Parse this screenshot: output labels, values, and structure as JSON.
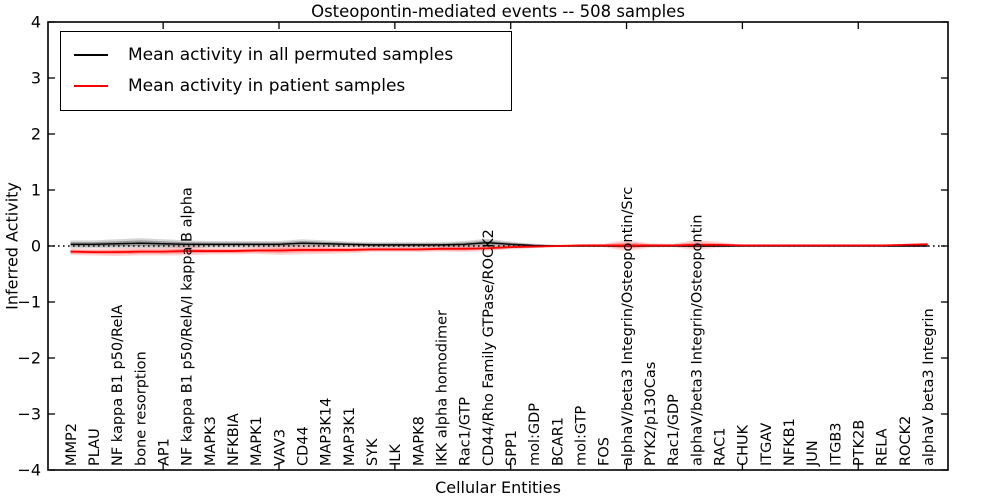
{
  "chart_data": {
    "type": "line",
    "title": "Osteopontin-mediated events -- 508 samples",
    "xlabel": "Cellular Entities",
    "ylabel": "Inferred Activity",
    "ylim": [
      -4,
      4
    ],
    "yticks": [
      4,
      3,
      2,
      1,
      0,
      -1,
      -2,
      -3,
      -4
    ],
    "x_major_tick_every": 5,
    "grid": false,
    "legend_position": "upper left",
    "zero_line": {
      "style": "dotted",
      "color": "#000000",
      "y": 0
    },
    "categories": [
      "MMP2",
      "PLAU",
      "NF kappa B1 p50/RelA",
      "bone resorption",
      "AP1",
      "NF kappa B1 p50/RelA/I kappa B alpha",
      "MAPK3",
      "NFKBIA",
      "MAPK1",
      "VAV3",
      "CD44",
      "MAP3K14",
      "MAP3K1",
      "SYK",
      "ILK",
      "MAPK8",
      "IKK alpha homodimer",
      "Rac1/GTP",
      "CD44/Rho Family GTPase/ROCK2",
      "SPP1",
      "mol:GDP",
      "BCAR1",
      "mol:GTP",
      "FOS",
      "alphaV/beta3 Integrin/Osteopontin/Src",
      "PYK2/p130Cas",
      "Rac1/GDP",
      "alphaV/beta3 Integrin/Osteopontin",
      "RAC1",
      "CHUK",
      "ITGAV",
      "NFKB1",
      "JUN",
      "ITGB3",
      "PTK2B",
      "RELA",
      "ROCK2",
      "alphaV beta3 Integrin"
    ],
    "series": [
      {
        "name": "Mean activity in all permuted samples",
        "color": "#000000",
        "band_color": "#000000",
        "values": [
          0.03,
          0.03,
          0.04,
          0.05,
          0.04,
          0.03,
          0.03,
          0.03,
          0.03,
          0.03,
          0.05,
          0.04,
          0.03,
          0.02,
          0.02,
          0.02,
          0.02,
          0.03,
          0.06,
          0.03,
          0.01,
          0.0,
          0.0,
          0.0,
          0.0,
          0.0,
          0.0,
          0.0,
          0.0,
          0.0,
          0.0,
          0.0,
          0.0,
          0.0,
          0.0,
          0.0,
          0.0,
          0.0
        ],
        "band": [
          0.07,
          0.07,
          0.08,
          0.09,
          0.08,
          0.07,
          0.06,
          0.06,
          0.06,
          0.06,
          0.07,
          0.06,
          0.05,
          0.05,
          0.05,
          0.05,
          0.05,
          0.06,
          0.07,
          0.05,
          0.03,
          0.02,
          0.015,
          0.015,
          0.015,
          0.015,
          0.015,
          0.015,
          0.015,
          0.015,
          0.015,
          0.015,
          0.015,
          0.015,
          0.015,
          0.015,
          0.015,
          0.015
        ]
      },
      {
        "name": "Mean activity in patient samples",
        "color": "#ff0000",
        "band_color": "#ff0000",
        "values": [
          -0.1,
          -0.11,
          -0.11,
          -0.1,
          -0.1,
          -0.09,
          -0.09,
          -0.09,
          -0.08,
          -0.08,
          -0.07,
          -0.07,
          -0.07,
          -0.06,
          -0.06,
          -0.06,
          -0.05,
          -0.05,
          -0.04,
          -0.02,
          -0.01,
          0.0,
          0.01,
          0.01,
          0.01,
          0.01,
          0.01,
          0.02,
          0.02,
          0.01,
          0.01,
          0.01,
          0.01,
          0.01,
          0.01,
          0.01,
          0.02,
          0.03
        ],
        "band": [
          0.06,
          0.06,
          0.07,
          0.07,
          0.07,
          0.08,
          0.06,
          0.06,
          0.06,
          0.08,
          0.08,
          0.07,
          0.06,
          0.05,
          0.05,
          0.05,
          0.05,
          0.06,
          0.05,
          0.04,
          0.03,
          0.02,
          0.02,
          0.03,
          0.1,
          0.04,
          0.03,
          0.09,
          0.05,
          0.02,
          0.02,
          0.02,
          0.02,
          0.02,
          0.02,
          0.02,
          0.02,
          0.03
        ]
      }
    ]
  }
}
